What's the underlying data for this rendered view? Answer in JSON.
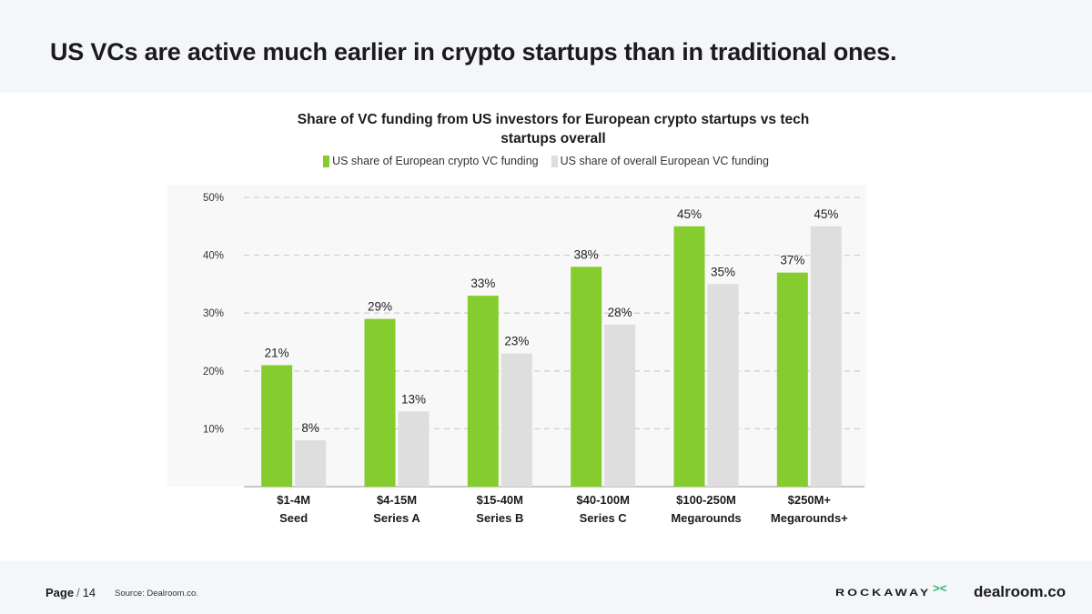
{
  "header": {
    "headline": "US VCs are active much earlier in crypto startups than in traditional ones."
  },
  "chart_data": {
    "type": "bar",
    "title": "Share of VC funding from US investors for European crypto startups vs tech startups overall",
    "categories": [
      [
        "$1-4M",
        "Seed"
      ],
      [
        "$4-15M",
        "Series A"
      ],
      [
        "$15-40M",
        "Series B"
      ],
      [
        "$40-100M",
        "Series C"
      ],
      [
        "$100-250M",
        "Megarounds"
      ],
      [
        "$250M+",
        "Megarounds+"
      ]
    ],
    "series": [
      {
        "name": "US share of European crypto VC funding",
        "color": "#85cc2e",
        "values": [
          21,
          29,
          33,
          38,
          45,
          37
        ],
        "labels": [
          "21%",
          "29%",
          "33%",
          "38%",
          "45%",
          "37%"
        ]
      },
      {
        "name": "US share of overall European VC funding",
        "color": "#dedede",
        "values": [
          8,
          13,
          23,
          28,
          35,
          45
        ],
        "labels": [
          "8%",
          "13%",
          "23%",
          "28%",
          "35%",
          "45%"
        ]
      }
    ],
    "ylim": [
      0,
      50
    ],
    "yticks": [
      "10%",
      "20%",
      "30%",
      "40%",
      "50%"
    ],
    "ytick_values": [
      10,
      20,
      30,
      40,
      50
    ],
    "grid": true,
    "legend": "top-center"
  },
  "footer": {
    "page_word": "Page",
    "page_number": "14",
    "source": "Source: Dealroom.co.",
    "logo_rockaway": "ROCKAWAY",
    "logo_dealroom": "dealroom.co"
  }
}
